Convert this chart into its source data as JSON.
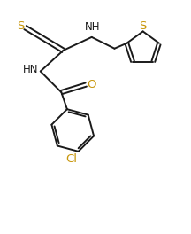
{
  "bg_color": "#ffffff",
  "line_color": "#1a1a1a",
  "s_color": "#c8960a",
  "o_color": "#c8960a",
  "cl_color": "#c8960a",
  "atom_color": "#1a1a1a",
  "line_width": 1.4,
  "font_size": 8.5,
  "figsize": [
    2.16,
    2.64
  ],
  "dpi": 100,
  "xlim": [
    0,
    10
  ],
  "ylim": [
    0,
    12.2
  ]
}
